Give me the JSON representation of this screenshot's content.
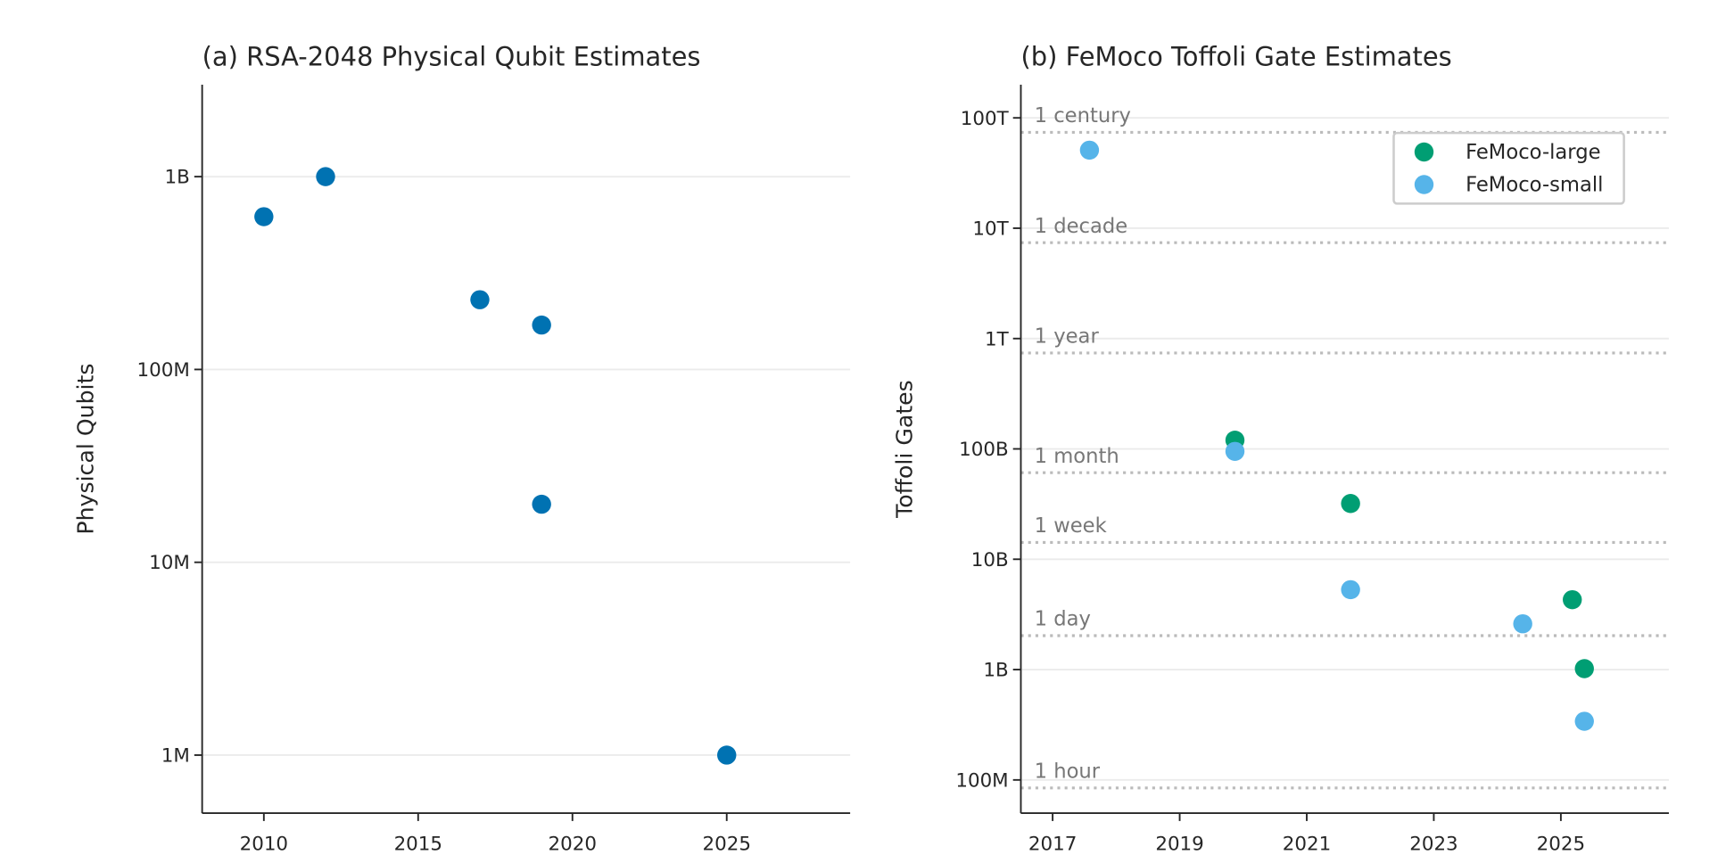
{
  "chart_data": [
    {
      "type": "scatter",
      "title": "(a) RSA-2048 Physical Qubit Estimates",
      "y_label": "Physical Qubits",
      "yscale": "log",
      "grid": true,
      "xlim": [
        2008,
        2029
      ],
      "xticks": [
        2010,
        2015,
        2020,
        2025
      ],
      "ylim": [
        500000,
        3000000000
      ],
      "yticks": [
        {
          "value": 1000000,
          "label": "1M"
        },
        {
          "value": 10000000,
          "label": "10M"
        },
        {
          "value": 100000000,
          "label": "100M"
        },
        {
          "value": 1000000000,
          "label": "1B"
        }
      ],
      "series": [
        {
          "color": "#0072b2",
          "x": [
            2010,
            2012,
            2017,
            2019,
            2019,
            2025
          ],
          "values": [
            620000000,
            1000000000,
            230000000,
            170000000,
            20000000,
            1000000
          ]
        }
      ]
    },
    {
      "type": "scatter",
      "title": "(b) FeMoco Toffoli Gate Estimates",
      "y_label": "Toffoli Gates",
      "yscale": "log",
      "grid": true,
      "legend": "upper right",
      "xlim": [
        2016.5,
        2026.7
      ],
      "xticks": [
        2017,
        2019,
        2021,
        2023,
        2025
      ],
      "ylim": [
        50000000,
        200000000000000
      ],
      "yticks": [
        {
          "value": 100000000,
          "label": "100M"
        },
        {
          "value": 1000000000,
          "label": "1B"
        },
        {
          "value": 10000000000,
          "label": "10B"
        },
        {
          "value": 100000000000,
          "label": "100B"
        },
        {
          "value": 1000000000000,
          "label": "1T"
        },
        {
          "value": 10000000000000,
          "label": "10T"
        },
        {
          "value": 100000000000000,
          "label": "100T"
        }
      ],
      "reference_lines": [
        {
          "label": "1 century",
          "value": 74000000000000
        },
        {
          "label": "1 decade",
          "value": 7400000000000
        },
        {
          "label": "1 year",
          "value": 740000000000
        },
        {
          "label": "1 month",
          "value": 60900000000
        },
        {
          "label": "1 week",
          "value": 14200000000
        },
        {
          "label": "1 day",
          "value": 2030000000
        },
        {
          "label": "1 hour",
          "value": 84600000
        }
      ],
      "series": [
        {
          "name": "FeMoco-large",
          "color": "#009e73",
          "x": [
            2019.87,
            2021.69,
            2025.18,
            2025.37
          ],
          "values": [
            120000000000,
            32000000000,
            4300000000,
            1020000000
          ]
        },
        {
          "name": "FeMoco-small",
          "color": "#56b4e9",
          "x": [
            2017.58,
            2019.87,
            2021.69,
            2024.4,
            2025.37
          ],
          "values": [
            51000000000000,
            95000000000,
            5300000000,
            2600000000,
            340000000
          ]
        }
      ]
    }
  ]
}
